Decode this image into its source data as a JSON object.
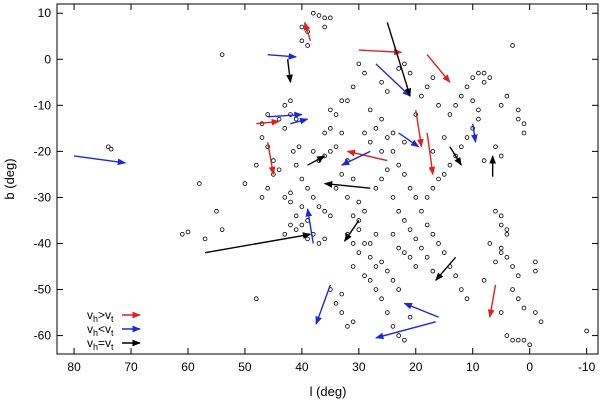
{
  "chart_data": {
    "type": "scatter",
    "xlabel": "l (deg)",
    "ylabel": "b (deg)",
    "xlim": [
      83,
      -12
    ],
    "ylim": [
      -64,
      12
    ],
    "xticks": [
      80,
      70,
      60,
      50,
      40,
      30,
      20,
      10,
      0,
      -10
    ],
    "yticks": [
      10,
      0,
      -10,
      -20,
      -30,
      -40,
      -50,
      -60
    ],
    "grid": false,
    "legend_position": "bottom-left",
    "colors": {
      "vh_gt_vt": "#e0201c",
      "vh_lt_vt": "#1a2ad8",
      "vh_eq_vt": "#000000"
    },
    "legend": [
      {
        "key": "vh_gt_vt",
        "v": "v",
        "s1": "h",
        "op": ">",
        "v2": "v",
        "s2": "t"
      },
      {
        "key": "vh_lt_vt",
        "v": "v",
        "s1": "h",
        "op": "<",
        "v2": "v",
        "s2": "t"
      },
      {
        "key": "vh_eq_vt",
        "v": "v",
        "s1": "h",
        "op": "=",
        "v2": "v",
        "s2": "t"
      }
    ],
    "points": [
      [
        74,
        -19
      ],
      [
        73.5,
        -19.5
      ],
      [
        61,
        -38
      ],
      [
        60,
        -37.5
      ],
      [
        55,
        -33
      ],
      [
        54,
        1
      ],
      [
        50,
        -27
      ],
      [
        48,
        -23
      ],
      [
        47,
        -17
      ],
      [
        46,
        -12
      ],
      [
        45,
        -25
      ],
      [
        44,
        -13
      ],
      [
        43,
        -15
      ],
      [
        43,
        -30
      ],
      [
        42,
        -29
      ],
      [
        42,
        -9
      ],
      [
        41.5,
        -20
      ],
      [
        41,
        -37
      ],
      [
        40.5,
        -19
      ],
      [
        40,
        -36
      ],
      [
        39,
        -35
      ],
      [
        39,
        -39
      ],
      [
        38,
        -38
      ],
      [
        37,
        -40
      ],
      [
        36,
        -39
      ],
      [
        38,
        -20
      ],
      [
        37,
        -22
      ],
      [
        36,
        -16
      ],
      [
        35,
        -15
      ],
      [
        40,
        4
      ],
      [
        39,
        3
      ],
      [
        38,
        10
      ],
      [
        37,
        9.5
      ],
      [
        36,
        9
      ],
      [
        35,
        9
      ],
      [
        36,
        7
      ],
      [
        40,
        7
      ],
      [
        39,
        6
      ],
      [
        35,
        -11
      ],
      [
        34,
        -12
      ],
      [
        33,
        -9
      ],
      [
        33,
        -16
      ],
      [
        32,
        -22
      ],
      [
        31,
        -26
      ],
      [
        30,
        -31
      ],
      [
        31,
        -45
      ],
      [
        29,
        -47
      ],
      [
        28,
        -48
      ],
      [
        27,
        -50
      ],
      [
        26,
        -52
      ],
      [
        25,
        -55
      ],
      [
        24,
        -58
      ],
      [
        23,
        -60
      ],
      [
        22,
        -61
      ],
      [
        21,
        -56
      ],
      [
        20,
        -45
      ],
      [
        21,
        -43
      ],
      [
        22,
        -42
      ],
      [
        23,
        -41
      ],
      [
        24,
        -38
      ],
      [
        28,
        -40
      ],
      [
        27,
        -38
      ],
      [
        29,
        -33
      ],
      [
        30,
        -35
      ],
      [
        28,
        -43
      ],
      [
        27,
        -45
      ],
      [
        26,
        -44
      ],
      [
        25,
        -46
      ],
      [
        24,
        -48
      ],
      [
        23,
        -50
      ],
      [
        28,
        -11
      ],
      [
        27,
        -15
      ],
      [
        26,
        -13
      ],
      [
        25,
        -17
      ],
      [
        24,
        -20
      ],
      [
        23,
        -23
      ],
      [
        22,
        -25
      ],
      [
        21,
        -28
      ],
      [
        20,
        -30
      ],
      [
        19,
        -33
      ],
      [
        18,
        -36
      ],
      [
        17,
        -38
      ],
      [
        16,
        -40
      ],
      [
        15,
        -42
      ],
      [
        14,
        -45
      ],
      [
        13,
        -47
      ],
      [
        12,
        -50
      ],
      [
        11,
        -52
      ],
      [
        14,
        -12
      ],
      [
        13,
        -10
      ],
      [
        12,
        -8
      ],
      [
        11,
        -6
      ],
      [
        10,
        -4
      ],
      [
        9,
        -3
      ],
      [
        8,
        -3
      ],
      [
        8,
        -5
      ],
      [
        7,
        -4
      ],
      [
        3,
        3
      ],
      [
        2,
        -13
      ],
      [
        2,
        -11
      ],
      [
        1,
        -14
      ],
      [
        1,
        -16
      ],
      [
        6,
        -19
      ],
      [
        5,
        -21
      ],
      [
        8,
        -22
      ],
      [
        7,
        -40
      ],
      [
        5,
        -41
      ],
      [
        5,
        -42
      ],
      [
        4,
        -43
      ],
      [
        3,
        -45
      ],
      [
        2,
        -47
      ],
      [
        6,
        -33
      ],
      [
        5,
        -34
      ],
      [
        5,
        -36
      ],
      [
        4,
        -37
      ],
      [
        4,
        -38
      ],
      [
        3,
        -50
      ],
      [
        2,
        -52
      ],
      [
        1,
        -54
      ],
      [
        -1,
        -44
      ],
      [
        -1,
        -46
      ],
      [
        4,
        -60
      ],
      [
        3,
        -61
      ],
      [
        2,
        -61
      ],
      [
        1,
        -61
      ],
      [
        0,
        -62
      ],
      [
        -2,
        -57
      ],
      [
        -10,
        -59
      ],
      [
        -1,
        -55
      ],
      [
        5,
        -55
      ],
      [
        31,
        -57
      ],
      [
        32,
        -58
      ],
      [
        33,
        -55
      ],
      [
        34,
        -53
      ],
      [
        33,
        -51
      ],
      [
        35,
        -50
      ],
      [
        45,
        -22
      ],
      [
        44,
        -24
      ],
      [
        46,
        -28
      ],
      [
        47,
        -30
      ],
      [
        42,
        -31
      ],
      [
        41,
        -23
      ],
      [
        40,
        -26
      ],
      [
        39,
        -28
      ],
      [
        38,
        -30
      ],
      [
        37,
        -32
      ],
      [
        36,
        -33
      ],
      [
        35,
        -34
      ],
      [
        34,
        -28
      ],
      [
        33,
        -25
      ],
      [
        32,
        -30
      ],
      [
        31,
        -34
      ],
      [
        30,
        -37
      ],
      [
        29,
        -40
      ],
      [
        31,
        -40
      ],
      [
        32,
        -38
      ],
      [
        30,
        -42
      ],
      [
        27,
        -28
      ],
      [
        26,
        -26
      ],
      [
        25,
        -24
      ],
      [
        24,
        -30
      ],
      [
        23,
        -33
      ],
      [
        22,
        -35
      ],
      [
        21,
        -37
      ],
      [
        20,
        -39
      ],
      [
        19,
        -41
      ],
      [
        18,
        -43
      ],
      [
        17,
        -46
      ],
      [
        18,
        -30
      ],
      [
        17,
        -28
      ],
      [
        16,
        -26
      ],
      [
        15,
        -25
      ],
      [
        14,
        -23
      ],
      [
        13,
        -21
      ],
      [
        12,
        -19
      ],
      [
        11,
        -17
      ],
      [
        10,
        -15
      ],
      [
        9,
        -13
      ],
      [
        9,
        -11
      ],
      [
        10,
        -9
      ],
      [
        19,
        -8
      ],
      [
        18,
        -6
      ],
      [
        17,
        -4
      ],
      [
        21,
        -3
      ],
      [
        22,
        -1
      ],
      [
        23,
        -2
      ],
      [
        26,
        -5
      ],
      [
        25,
        -7
      ],
      [
        29,
        -3
      ],
      [
        30,
        -1
      ],
      [
        31,
        -6
      ],
      [
        32,
        -9
      ],
      [
        34,
        -19
      ],
      [
        35,
        -20
      ],
      [
        36,
        -21
      ],
      [
        40,
        -32
      ],
      [
        41,
        -34
      ],
      [
        42,
        -36
      ],
      [
        43,
        -38
      ],
      [
        48,
        -52
      ],
      [
        54,
        -37
      ],
      [
        57,
        -39
      ],
      [
        58,
        -27
      ],
      [
        46,
        -19
      ],
      [
        47,
        -14
      ],
      [
        42,
        -12
      ],
      [
        41,
        -13
      ],
      [
        43,
        -10
      ],
      [
        29,
        -16
      ],
      [
        28,
        -18
      ],
      [
        26,
        -20
      ],
      [
        24,
        -16
      ],
      [
        22,
        -18
      ],
      [
        20,
        -12
      ],
      [
        16,
        -10
      ],
      [
        15,
        -17
      ],
      [
        17,
        -20
      ],
      [
        5,
        -10
      ],
      [
        4,
        -8
      ],
      [
        6,
        -44
      ],
      [
        8,
        -48
      ]
    ],
    "arrows": [
      {
        "cat": "vh_gt_vt",
        "from": [
          38.5,
          4
        ],
        "to": [
          39.5,
          8
        ]
      },
      {
        "cat": "vh_gt_vt",
        "from": [
          30,
          2
        ],
        "to": [
          22.5,
          1.5
        ]
      },
      {
        "cat": "vh_gt_vt",
        "from": [
          18,
          1
        ],
        "to": [
          14,
          -5
        ]
      },
      {
        "cat": "vh_gt_vt",
        "from": [
          48,
          -14
        ],
        "to": [
          44,
          -13.5
        ]
      },
      {
        "cat": "vh_gt_vt",
        "from": [
          46,
          -18
        ],
        "to": [
          45,
          -25
        ]
      },
      {
        "cat": "vh_gt_vt",
        "from": [
          25,
          -22
        ],
        "to": [
          32,
          -20
        ]
      },
      {
        "cat": "vh_gt_vt",
        "from": [
          20,
          -11
        ],
        "to": [
          19,
          -19
        ]
      },
      {
        "cat": "vh_gt_vt",
        "from": [
          18,
          -16
        ],
        "to": [
          17,
          -25
        ]
      },
      {
        "cat": "vh_gt_vt",
        "from": [
          6,
          -49
        ],
        "to": [
          7,
          -56
        ]
      },
      {
        "cat": "vh_lt_vt",
        "from": [
          80,
          -21
        ],
        "to": [
          71,
          -22.5
        ]
      },
      {
        "cat": "vh_lt_vt",
        "from": [
          46,
          1
        ],
        "to": [
          41,
          0.5
        ]
      },
      {
        "cat": "vh_lt_vt",
        "from": [
          27,
          -1
        ],
        "to": [
          21,
          -8
        ]
      },
      {
        "cat": "vh_lt_vt",
        "from": [
          46,
          -12.5
        ],
        "to": [
          40,
          -12
        ]
      },
      {
        "cat": "vh_lt_vt",
        "from": [
          42,
          -14
        ],
        "to": [
          39,
          -13
        ]
      },
      {
        "cat": "vh_lt_vt",
        "from": [
          23,
          -16
        ],
        "to": [
          19.5,
          -19
        ]
      },
      {
        "cat": "vh_lt_vt",
        "from": [
          28,
          -20
        ],
        "to": [
          33,
          -23
        ]
      },
      {
        "cat": "vh_lt_vt",
        "from": [
          10,
          -14
        ],
        "to": [
          9.5,
          -18
        ]
      },
      {
        "cat": "vh_lt_vt",
        "from": [
          38,
          -40
        ],
        "to": [
          39,
          -32.5
        ]
      },
      {
        "cat": "vh_lt_vt",
        "from": [
          35,
          -49
        ],
        "to": [
          37.5,
          -57.5
        ]
      },
      {
        "cat": "vh_lt_vt",
        "from": [
          16,
          -56
        ],
        "to": [
          22,
          -53
        ]
      },
      {
        "cat": "vh_lt_vt",
        "from": [
          16.5,
          -57
        ],
        "to": [
          27,
          -60.5
        ]
      },
      {
        "cat": "vh_eq_vt",
        "from": [
          25,
          8
        ],
        "to": [
          21,
          -8
        ]
      },
      {
        "cat": "vh_eq_vt",
        "from": [
          42.5,
          0
        ],
        "to": [
          42,
          -5
        ]
      },
      {
        "cat": "vh_eq_vt",
        "from": [
          14,
          -19
        ],
        "to": [
          12,
          -23
        ]
      },
      {
        "cat": "vh_eq_vt",
        "from": [
          6.5,
          -25.5
        ],
        "to": [
          6.5,
          -21
        ]
      },
      {
        "cat": "vh_eq_vt",
        "from": [
          39,
          -23
        ],
        "to": [
          36,
          -21
        ]
      },
      {
        "cat": "vh_eq_vt",
        "from": [
          28,
          -28
        ],
        "to": [
          36,
          -27
        ]
      },
      {
        "cat": "vh_eq_vt",
        "from": [
          57,
          -42
        ],
        "to": [
          38.5,
          -38
        ]
      },
      {
        "cat": "vh_eq_vt",
        "from": [
          30,
          -35
        ],
        "to": [
          32.5,
          -39.5
        ]
      },
      {
        "cat": "vh_eq_vt",
        "from": [
          13,
          -43
        ],
        "to": [
          16.5,
          -48
        ]
      }
    ]
  }
}
